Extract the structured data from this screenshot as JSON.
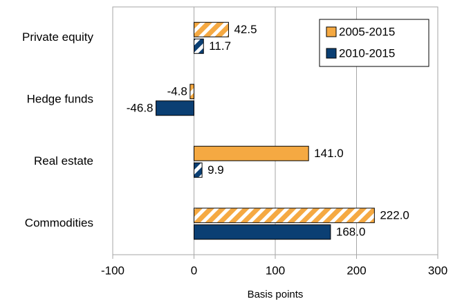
{
  "chart_data": {
    "type": "bar",
    "orientation": "horizontal",
    "categories": [
      "Private equity",
      "Hedge funds",
      "Real estate",
      "Commodities"
    ],
    "series": [
      {
        "name": "2005-2015",
        "color": "#f5a942",
        "values": [
          42.5,
          -4.8,
          141.0,
          222.0
        ],
        "value_labels": [
          "42.5",
          "-4.8",
          "141.0",
          "222.0"
        ],
        "hatched": [
          true,
          true,
          false,
          true
        ]
      },
      {
        "name": "2010-2015",
        "color": "#0b3f73",
        "values": [
          11.7,
          -46.8,
          9.9,
          168.0
        ],
        "value_labels": [
          "11.7",
          "-46.8",
          "9.9",
          "168.0"
        ],
        "hatched": [
          true,
          false,
          true,
          false
        ]
      }
    ],
    "xlabel": "Basis points",
    "xlim": [
      -100,
      300
    ],
    "xticks": [
      -100,
      0,
      100,
      200,
      300
    ],
    "grid": true,
    "legend": "upper right"
  }
}
